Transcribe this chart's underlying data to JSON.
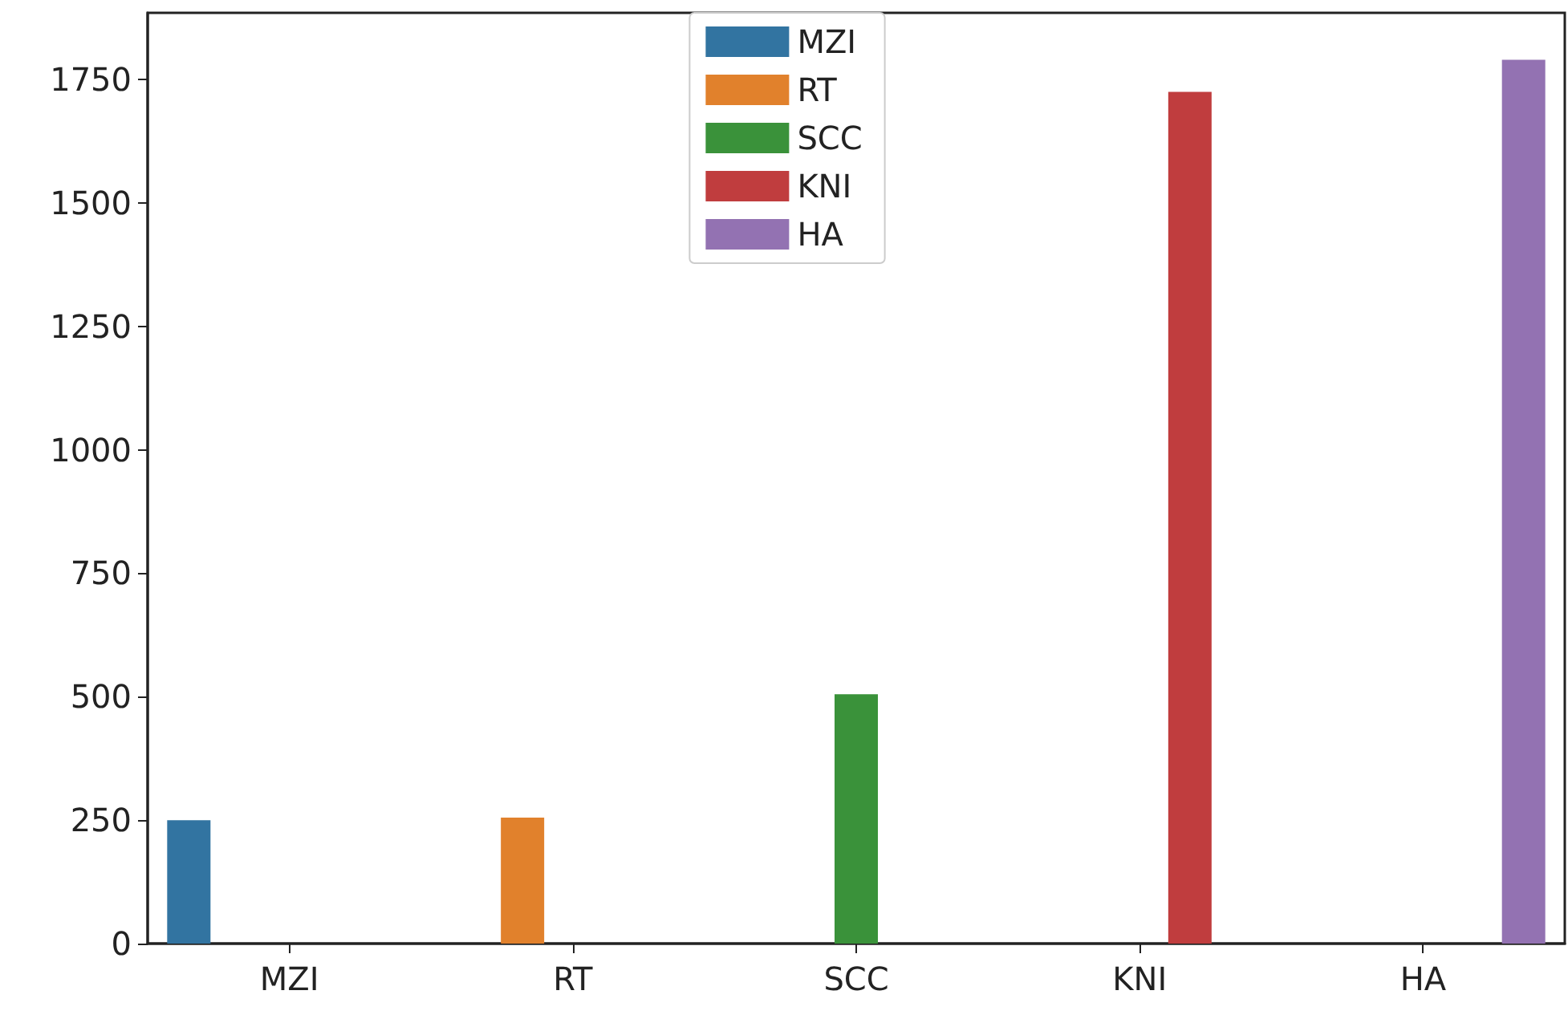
{
  "chart_data": {
    "type": "bar",
    "categories": [
      "MZI",
      "RT",
      "SCC",
      "KNI",
      "HA"
    ],
    "series": [
      {
        "name": "MZI",
        "color": "#3274a1",
        "values": [
          250,
          null,
          null,
          null,
          null
        ]
      },
      {
        "name": "RT",
        "color": "#e1812c",
        "values": [
          null,
          255,
          null,
          null,
          null
        ]
      },
      {
        "name": "SCC",
        "color": "#3a923a",
        "values": [
          null,
          null,
          505,
          null,
          null
        ]
      },
      {
        "name": "KNI",
        "color": "#c03d3e",
        "values": [
          null,
          null,
          null,
          1725,
          null
        ]
      },
      {
        "name": "HA",
        "color": "#9372b2",
        "values": [
          null,
          null,
          null,
          null,
          1790
        ]
      }
    ],
    "ylim": [
      0,
      1885
    ],
    "yticks": [
      0,
      250,
      500,
      750,
      1000,
      1250,
      1500,
      1750
    ],
    "grid": false,
    "legend": "top"
  }
}
